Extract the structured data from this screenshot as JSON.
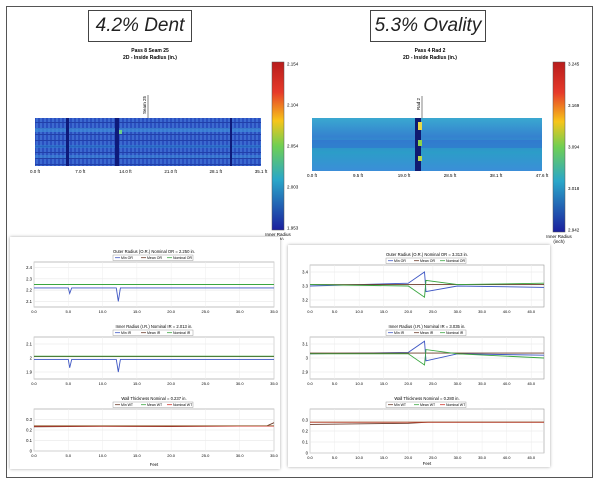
{
  "left": {
    "title": "4.2% Dent",
    "heatmap": {
      "title": "Pass 8 Seam 25",
      "subtitle": "2D - Inside Radius (in.)",
      "marker_label": "Seam 25",
      "x_ticks": [
        "0.0 ft",
        "7.0 ft",
        "14.0 ft",
        "21.0 ft",
        "28.1 ft",
        "35.1 ft"
      ],
      "colorbar_ticks": [
        "2.154",
        "2.104",
        "2.054",
        "2.003",
        "1.953"
      ],
      "colorbar_label_1": "Inner Radius",
      "colorbar_label_2": "(inch)"
    },
    "x_axis_title": "Feet"
  },
  "right": {
    "title": "5.3% Ovality",
    "heatmap": {
      "title": "Pass 4 Rad 2",
      "subtitle": "2D - Inside Radius (in.)",
      "marker_label": "Rad 2",
      "x_ticks": [
        "0.0 ft",
        "9.5 ft",
        "19.0 ft",
        "28.5 ft",
        "38.1 ft",
        "47.6 ft"
      ],
      "colorbar_ticks": [
        "3.245",
        "3.169",
        "3.094",
        "3.018",
        "2.942"
      ],
      "colorbar_label_1": "Inner Radius",
      "colorbar_label_2": "(inch)"
    },
    "x_axis_title": "Feet"
  },
  "colors": {
    "min": "#3f57c4",
    "mean": "#6b3b2a",
    "nominal": "#3aa640",
    "max": "#d0342c"
  },
  "chart_data": [
    {
      "id": "left-outer",
      "type": "line",
      "title": "Outer Radius (O.R.)   Nominal OR = 2.250 in.",
      "legend": [
        "Min OR",
        "Mean OR",
        "Nominal OR"
      ],
      "x_ticks": [
        "0.0",
        "5.0",
        "10.0",
        "15.0",
        "20.0",
        "25.0",
        "30.0",
        "35.0"
      ],
      "y_ticks": [
        "2.4",
        "2.3",
        "2.2",
        "2.1"
      ],
      "xlim": [
        0,
        35
      ],
      "ylim": [
        2.05,
        2.45
      ],
      "series": [
        {
          "name": "Min OR",
          "color_key": "min",
          "x": [
            0,
            5,
            5.2,
            5.5,
            12,
            12.3,
            12.6,
            35
          ],
          "y": [
            2.22,
            2.22,
            2.17,
            2.22,
            2.22,
            2.1,
            2.22,
            2.22
          ]
        },
        {
          "name": "Mean OR",
          "color_key": "mean",
          "x": [
            0,
            35
          ],
          "y": [
            2.25,
            2.25
          ]
        },
        {
          "name": "Nominal OR",
          "color_key": "nominal",
          "x": [
            0,
            35
          ],
          "y": [
            2.25,
            2.25
          ]
        }
      ]
    },
    {
      "id": "left-inner",
      "type": "line",
      "title": "Inner Radius (I.R.)   Nominal IR = 2.013 in.",
      "legend": [
        "Min IR",
        "Mean IR",
        "Nominal IR"
      ],
      "x_ticks": [
        "0.0",
        "5.0",
        "10.0",
        "15.0",
        "20.0",
        "25.0",
        "30.0",
        "35.0"
      ],
      "y_ticks": [
        "2.1",
        "2",
        "1.9"
      ],
      "xlim": [
        0,
        35
      ],
      "ylim": [
        1.85,
        2.15
      ],
      "series": [
        {
          "name": "Min IR",
          "color_key": "min",
          "x": [
            0,
            5,
            5.2,
            5.5,
            12,
            12.3,
            12.6,
            35
          ],
          "y": [
            1.99,
            1.99,
            1.93,
            1.99,
            1.99,
            1.9,
            1.99,
            1.99
          ]
        },
        {
          "name": "Mean IR",
          "color_key": "mean",
          "x": [
            0,
            35
          ],
          "y": [
            2.01,
            2.01
          ]
        },
        {
          "name": "Nominal IR",
          "color_key": "nominal",
          "x": [
            0,
            35
          ],
          "y": [
            2.013,
            2.013
          ]
        }
      ]
    },
    {
      "id": "left-wall",
      "type": "line",
      "title": "Wall Thickness   Nominal = 0.237 in.",
      "legend": [
        "Min WT",
        "Mean WT",
        "Nominal WT"
      ],
      "x_ticks": [
        "0.0",
        "5.0",
        "10.0",
        "15.0",
        "20.0",
        "25.0",
        "30.0",
        "35.0"
      ],
      "y_ticks": [
        "0.3",
        "0.2",
        "0.1",
        "0"
      ],
      "xlim": [
        0,
        35
      ],
      "ylim": [
        0,
        0.4
      ],
      "series": [
        {
          "name": "Min WT",
          "color_key": "mean",
          "x": [
            0,
            10,
            20,
            34,
            35
          ],
          "y": [
            0.23,
            0.235,
            0.232,
            0.24,
            0.27
          ]
        },
        {
          "name": "Mean WT",
          "color_key": "nominal",
          "x": [
            0,
            35
          ],
          "y": [
            0.24,
            0.24
          ]
        },
        {
          "name": "Nominal WT",
          "color_key": "max",
          "x": [
            0,
            35
          ],
          "y": [
            0.237,
            0.237
          ]
        }
      ]
    },
    {
      "id": "right-outer",
      "type": "line",
      "title": "Outer Radius (O.R.)   Nominal OR = 3.313 in.",
      "legend": [
        "Min OR",
        "Mean OR",
        "Nominal OR"
      ],
      "x_ticks": [
        "0.0",
        "5.0",
        "10.0",
        "15.0",
        "20.0",
        "25.0",
        "30.0",
        "35.0",
        "40.0",
        "45.0"
      ],
      "y_ticks": [
        "3.4",
        "3.3",
        "3.2"
      ],
      "xlim": [
        0,
        47.6
      ],
      "ylim": [
        3.15,
        3.45
      ],
      "series": [
        {
          "name": "Min OR",
          "color_key": "min",
          "x": [
            0,
            20,
            23.3,
            23.6,
            30,
            47.6
          ],
          "y": [
            3.3,
            3.32,
            3.4,
            3.26,
            3.3,
            3.29
          ]
        },
        {
          "name": "Mean OR",
          "color_key": "mean",
          "x": [
            0,
            47.6
          ],
          "y": [
            3.31,
            3.31
          ]
        },
        {
          "name": "Nominal OR",
          "color_key": "nominal",
          "x": [
            0,
            20,
            23.3,
            23.6,
            30,
            47.6
          ],
          "y": [
            3.31,
            3.3,
            3.22,
            3.34,
            3.31,
            3.32
          ]
        }
      ]
    },
    {
      "id": "right-inner",
      "type": "line",
      "title": "Inner Radius (I.R.)   Nominal IR = 3.035 in.",
      "legend": [
        "Min IR",
        "Mean IR",
        "Nominal IR"
      ],
      "x_ticks": [
        "0.0",
        "5.0",
        "10.0",
        "15.0",
        "20.0",
        "25.0",
        "30.0",
        "35.0",
        "40.0",
        "45.0"
      ],
      "y_ticks": [
        "3.1",
        "3",
        "2.9"
      ],
      "xlim": [
        0,
        47.6
      ],
      "ylim": [
        2.85,
        3.15
      ],
      "series": [
        {
          "name": "Min IR",
          "color_key": "min",
          "x": [
            0,
            20,
            23.3,
            23.6,
            30,
            47.6
          ],
          "y": [
            3.03,
            3.04,
            3.12,
            2.98,
            3.03,
            3.02
          ]
        },
        {
          "name": "Mean IR",
          "color_key": "mean",
          "x": [
            0,
            47.6
          ],
          "y": [
            3.035,
            3.035
          ]
        },
        {
          "name": "Nominal IR",
          "color_key": "nominal",
          "x": [
            0,
            20,
            23.3,
            23.6,
            30,
            47.6
          ],
          "y": [
            3.03,
            3.03,
            2.95,
            3.06,
            3.03,
            3.0
          ]
        }
      ]
    },
    {
      "id": "right-wall",
      "type": "line",
      "title": "Wall Thickness   Nominal = 0.280 in.",
      "legend": [
        "Min WT",
        "Mean WT",
        "Nominal WT"
      ],
      "x_ticks": [
        "0.0",
        "5.0",
        "10.0",
        "15.0",
        "20.0",
        "25.0",
        "30.0",
        "35.0",
        "40.0",
        "45.0"
      ],
      "y_ticks": [
        "0.3",
        "0.2",
        "0.1",
        "0"
      ],
      "xlim": [
        0,
        47.6
      ],
      "ylim": [
        0,
        0.4
      ],
      "series": [
        {
          "name": "Min WT",
          "color_key": "mean",
          "x": [
            0,
            20,
            24,
            47.6
          ],
          "y": [
            0.26,
            0.27,
            0.28,
            0.28
          ]
        },
        {
          "name": "Mean WT",
          "color_key": "nominal",
          "x": [
            0,
            47.6
          ],
          "y": [
            0.28,
            0.28
          ]
        },
        {
          "name": "Nominal WT",
          "color_key": "max",
          "x": [
            0,
            47.6
          ],
          "y": [
            0.28,
            0.28
          ]
        }
      ]
    }
  ]
}
